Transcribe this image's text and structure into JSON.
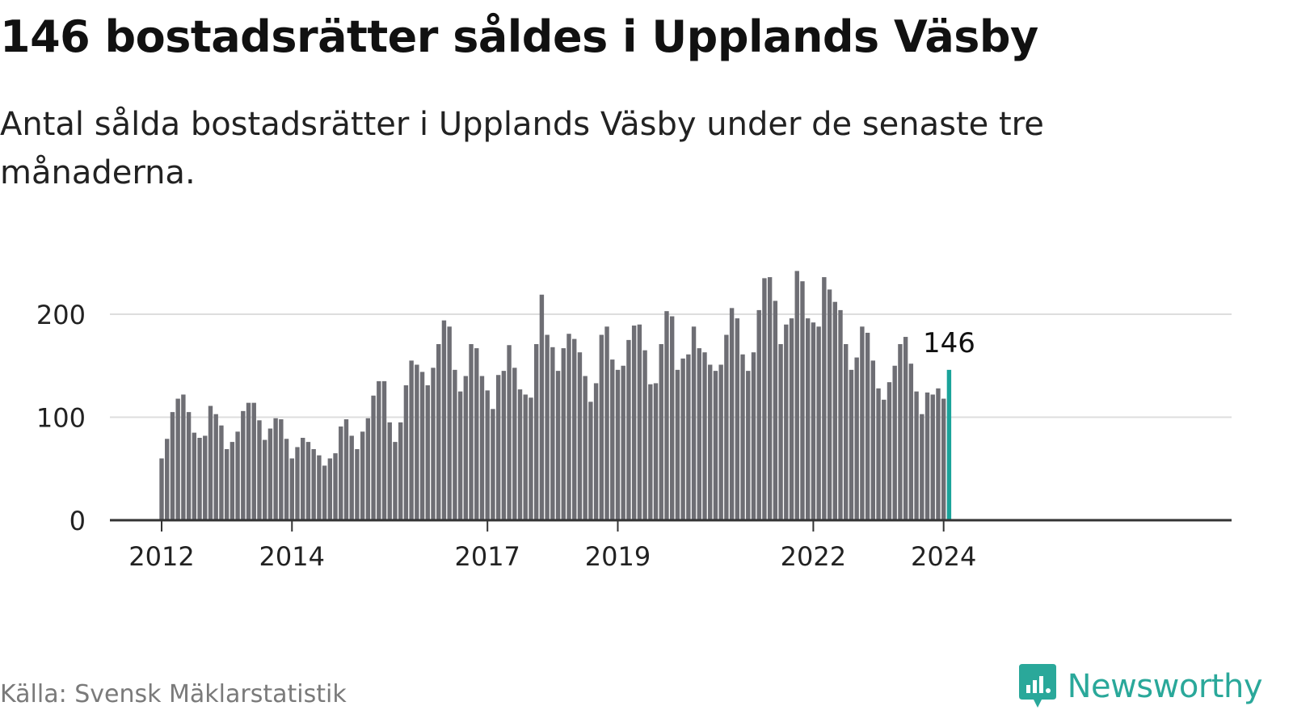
{
  "header": {
    "title": "146 bostadsrätter såldes i Upplands Väsby",
    "subtitle": "Antal sålda bostadsrätter i Upplands Väsby under de senaste tre månaderna."
  },
  "footer": {
    "source": "Källa: Svensk Mäklarstatistik",
    "brand": "Newsworthy"
  },
  "colors": {
    "bar": "#6e6e74",
    "highlight": "#1aa39a",
    "grid": "#dddddd",
    "axis": "#333333",
    "text": "#222222"
  },
  "chart_data": {
    "type": "bar",
    "title": "146 bostadsrätter såldes i Upplands Väsby",
    "xlabel": "",
    "ylabel": "",
    "ylim": [
      0,
      250
    ],
    "yticks": [
      0,
      100,
      200
    ],
    "grid": true,
    "start": {
      "year": 2012,
      "month": 1
    },
    "x_tick_labels": [
      "2012",
      "2014",
      "2017",
      "2019",
      "2022",
      "2024"
    ],
    "highlight_index": 145,
    "highlight_label": "146",
    "values": [
      60,
      79,
      105,
      118,
      122,
      105,
      85,
      80,
      82,
      111,
      103,
      92,
      69,
      76,
      86,
      106,
      114,
      114,
      97,
      78,
      89,
      99,
      98,
      79,
      60,
      71,
      80,
      76,
      69,
      63,
      53,
      60,
      65,
      91,
      98,
      82,
      69,
      86,
      99,
      121,
      135,
      135,
      95,
      76,
      95,
      131,
      155,
      151,
      144,
      131,
      148,
      171,
      194,
      188,
      146,
      125,
      140,
      171,
      167,
      140,
      126,
      108,
      141,
      145,
      170,
      148,
      127,
      122,
      119,
      171,
      219,
      180,
      168,
      145,
      167,
      181,
      176,
      163,
      140,
      115,
      133,
      180,
      188,
      156,
      146,
      150,
      175,
      189,
      190,
      165,
      132,
      133,
      171,
      203,
      198,
      146,
      157,
      161,
      188,
      167,
      163,
      151,
      145,
      151,
      180,
      206,
      196,
      161,
      145,
      163,
      204,
      235,
      236,
      213,
      171,
      190,
      196,
      242,
      232,
      196,
      192,
      188,
      236,
      224,
      212,
      204,
      171,
      146,
      158,
      188,
      182,
      155,
      128,
      117,
      134,
      150,
      171,
      178,
      152,
      125,
      103,
      124,
      122,
      128,
      118,
      146
    ]
  }
}
